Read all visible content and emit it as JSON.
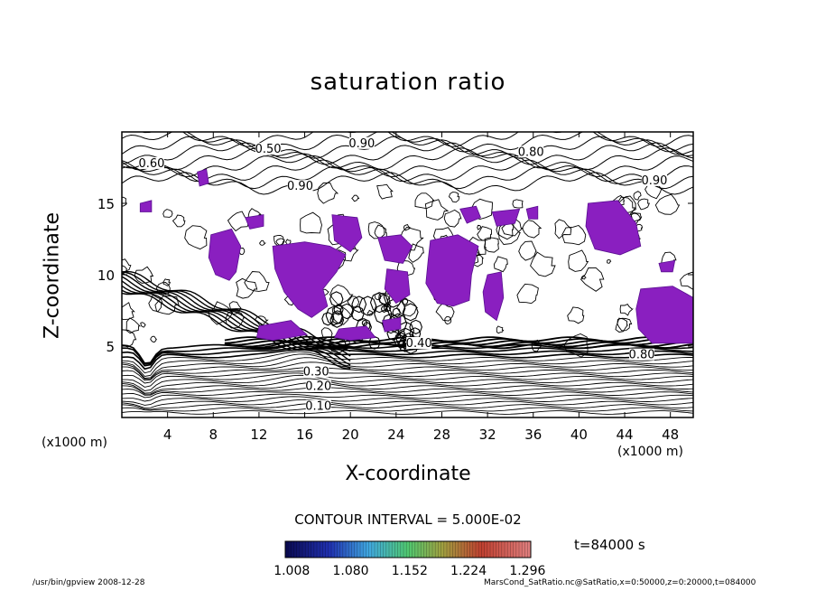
{
  "chart_data": {
    "type": "contour",
    "title": "saturation ratio",
    "xlabel": "X-coordinate",
    "ylabel": "Z-coordinate",
    "x_unit_left": "(x1000 m)",
    "x_unit_right": "(x1000 m)",
    "xlim": [
      0,
      50
    ],
    "ylim": [
      0,
      20
    ],
    "x_ticks": [
      4,
      8,
      12,
      16,
      20,
      24,
      28,
      32,
      36,
      40,
      44,
      48
    ],
    "y_ticks": [
      5,
      10,
      15
    ],
    "contour_interval_text": "CONTOUR INTERVAL = 5.000E-02",
    "contour_labels": [
      {
        "text": "0.10",
        "x": 17.2,
        "z": 0.6
      },
      {
        "text": "0.20",
        "x": 17.2,
        "z": 2.0
      },
      {
        "text": "0.30",
        "x": 17.0,
        "z": 3.0
      },
      {
        "text": "0.40",
        "x": 26.0,
        "z": 5.0
      },
      {
        "text": "0.50",
        "x": 12.8,
        "z": 18.6
      },
      {
        "text": "0.60",
        "x": 2.6,
        "z": 17.6
      },
      {
        "text": "0.80",
        "x": 35.8,
        "z": 18.4
      },
      {
        "text": "0.90",
        "x": 21.0,
        "z": 19.0
      },
      {
        "text": "0.90",
        "x": 15.6,
        "z": 16.0
      },
      {
        "text": "0.90",
        "x": 46.6,
        "z": 16.4
      },
      {
        "text": "0.80",
        "x": 45.5,
        "z": 4.2
      }
    ],
    "colorbar": {
      "tick_labels": [
        "1.008",
        "1.080",
        "1.152",
        "1.224",
        "1.296"
      ],
      "range": [
        1.0,
        1.3
      ]
    },
    "time_text": "t=84000 s",
    "supersaturated_color": "#8a1fc0"
  },
  "footer": {
    "left": "/usr/bin/gpview   2008-12-28",
    "right": "MarsCond_SatRatio.nc@SatRatio,x=0:50000,z=0:20000,t=084000"
  }
}
